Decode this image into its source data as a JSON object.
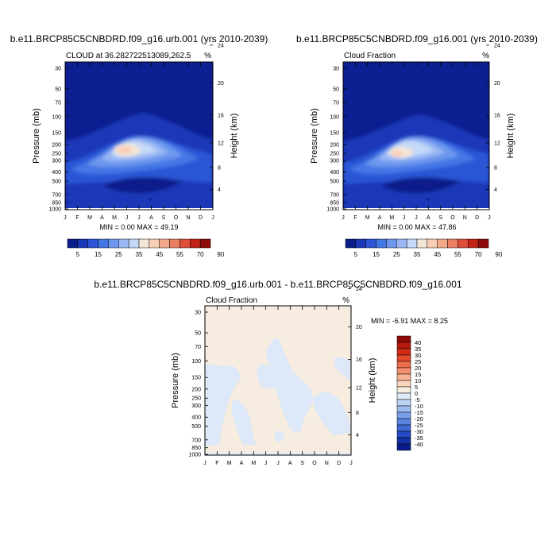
{
  "panels": [
    {
      "title": "b.e11.BRCP85C5CNBDRD.f09_g16.urb.001 (yrs 2010-2039)",
      "subtitle_left": "CLOUD at 36.282722513089,262.5",
      "subtitle_right": "%",
      "ylabel_left": "Pressure (mb)",
      "ylabel_right": "Height (km)",
      "minmax": "MIN =   0.00 MAX =  49.19"
    },
    {
      "title": "b.e11.BRCP85C5CNBDRD.f09_g16.001 (yrs 2010-2039)",
      "subtitle_left": "Cloud Fraction",
      "subtitle_right": "%",
      "ylabel_left": "Pressure (mb)",
      "ylabel_right": "Height (km)",
      "minmax": "MIN =   0.00 MAX =  47.86"
    },
    {
      "title": "b.e11.BRCP85C5CNBDRD.f09_g16.urb.001 - b.e11.BRCP85C5CNBDRD.f09_g16.001",
      "subtitle_left": "Cloud Fraction",
      "subtitle_right": "%",
      "ylabel_left": "Pressure (mb)",
      "ylabel_right": "Height (km)",
      "minmax": "MIN =  -6.91 MAX =   8.25"
    }
  ],
  "chart_data": [
    {
      "type": "heatmap",
      "title": "b.e11.BRCP85C5CNBDRD.f09_g16.urb.001 (yrs 2010-2039)",
      "subtitle": "CLOUD at 36.282722513089,262.5",
      "xlabel": "",
      "ylabel": "Pressure (mb)",
      "ylabel_right": "Height (km)",
      "x_ticks": [
        "J",
        "F",
        "M",
        "A",
        "M",
        "J",
        "J",
        "A",
        "S",
        "O",
        "N",
        "D",
        "J"
      ],
      "y_ticks": [
        "30",
        "50",
        "70",
        "100",
        "150",
        "200",
        "250",
        "300",
        "400",
        "500",
        "700",
        "850",
        "1000"
      ],
      "y_ticks_right": [
        "24",
        "20",
        "16",
        "12",
        "8",
        "4"
      ],
      "peak_month": "May",
      "peak_pressure_mb": 200,
      "min": 0.0,
      "max": 49.19,
      "units": "%",
      "colorbar_labels": [
        "5",
        "15",
        "25",
        "35",
        "45",
        "55",
        "70",
        "90"
      ]
    },
    {
      "type": "heatmap",
      "title": "b.e11.BRCP85C5CNBDRD.f09_g16.001 (yrs 2010-2039)",
      "subtitle": "Cloud Fraction",
      "xlabel": "",
      "ylabel": "Pressure (mb)",
      "ylabel_right": "Height (km)",
      "x_ticks": [
        "J",
        "F",
        "M",
        "A",
        "M",
        "J",
        "J",
        "A",
        "S",
        "O",
        "N",
        "D",
        "J"
      ],
      "y_ticks": [
        "30",
        "50",
        "70",
        "100",
        "150",
        "200",
        "250",
        "300",
        "400",
        "500",
        "700",
        "850",
        "1000"
      ],
      "y_ticks_right": [
        "24",
        "20",
        "16",
        "12",
        "8",
        "4"
      ],
      "peak_month": "May",
      "peak_pressure_mb": 220,
      "min": 0.0,
      "max": 47.86,
      "units": "%",
      "colorbar_labels": [
        "5",
        "15",
        "25",
        "35",
        "45",
        "55",
        "70",
        "90"
      ]
    },
    {
      "type": "heatmap",
      "title": "b.e11.BRCP85C5CNBDRD.f09_g16.urb.001 - b.e11.BRCP85C5CNBDRD.f09_g16.001",
      "subtitle": "Cloud Fraction",
      "xlabel": "",
      "ylabel": "Pressure (mb)",
      "ylabel_right": "Height (km)",
      "x_ticks": [
        "J",
        "F",
        "M",
        "A",
        "M",
        "J",
        "J",
        "A",
        "S",
        "O",
        "N",
        "D",
        "J"
      ],
      "y_ticks": [
        "30",
        "50",
        "70",
        "100",
        "150",
        "200",
        "250",
        "300",
        "400",
        "500",
        "700",
        "850",
        "1000"
      ],
      "y_ticks_right": [
        "24",
        "20",
        "16",
        "12",
        "8",
        "4"
      ],
      "min": -6.91,
      "max": 8.25,
      "units": "%",
      "colorbar_labels": [
        "40",
        "35",
        "30",
        "25",
        "20",
        "15",
        "10",
        "5",
        "0",
        "-5",
        "-10",
        "-15",
        "-20",
        "-25",
        "-30",
        "-35",
        "-40"
      ]
    }
  ],
  "colorbars": {
    "seq_colors": [
      "#0a1c8a",
      "#1a37b8",
      "#2c56d6",
      "#4477e6",
      "#6d97ee",
      "#9ab8f4",
      "#c4d9f8",
      "#f2e6d6",
      "#f8cdb4",
      "#f4a98a",
      "#ec7f62",
      "#dc4d3a",
      "#c22316",
      "#8e0a08"
    ],
    "div_colors": [
      "#8e0a08",
      "#b7190e",
      "#d02c18",
      "#e24a2c",
      "#ec6d4c",
      "#f38f6e",
      "#f8b394",
      "#fbd4bc",
      "#f6ecdf",
      "#dde8f8",
      "#bed4f4",
      "#9cbcef",
      "#7a9fe8",
      "#5a83e0",
      "#3e68d4",
      "#264ac2",
      "#1430a6",
      "#0a1c8a"
    ]
  }
}
